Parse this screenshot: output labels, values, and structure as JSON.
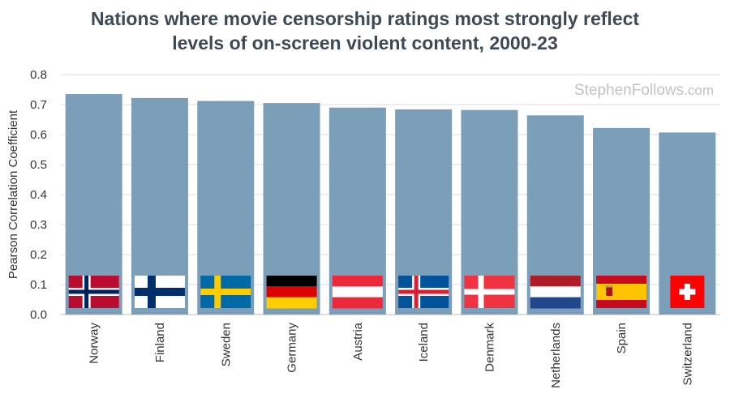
{
  "chart_data": {
    "type": "bar",
    "title_line1": "Nations where movie censorship ratings most strongly reflect",
    "title_line2": "levels of on-screen violent content, 2000-23",
    "xlabel": "",
    "ylabel": "Pearson Correlation Coefficient",
    "ylim": [
      0,
      0.8
    ],
    "yticks": [
      "0.0",
      "0.1",
      "0.2",
      "0.3",
      "0.4",
      "0.5",
      "0.6",
      "0.7",
      "0.8"
    ],
    "categories": [
      "Norway",
      "Finland",
      "Sweden",
      "Germany",
      "Austria",
      "Iceland",
      "Denmark",
      "Netherlands",
      "Spain",
      "Switzerland"
    ],
    "values": [
      0.735,
      0.722,
      0.712,
      0.705,
      0.69,
      0.684,
      0.682,
      0.664,
      0.622,
      0.607
    ],
    "flags": [
      "norway-flag",
      "finland-flag",
      "sweden-flag",
      "germany-flag",
      "austria-flag",
      "iceland-flag",
      "denmark-flag",
      "netherlands-flag",
      "spain-flag",
      "switzerland-flag"
    ],
    "bar_color": "#7b9eb9",
    "grid": true
  },
  "watermark": {
    "main": "StephenFollows",
    "suffix": ".com"
  }
}
